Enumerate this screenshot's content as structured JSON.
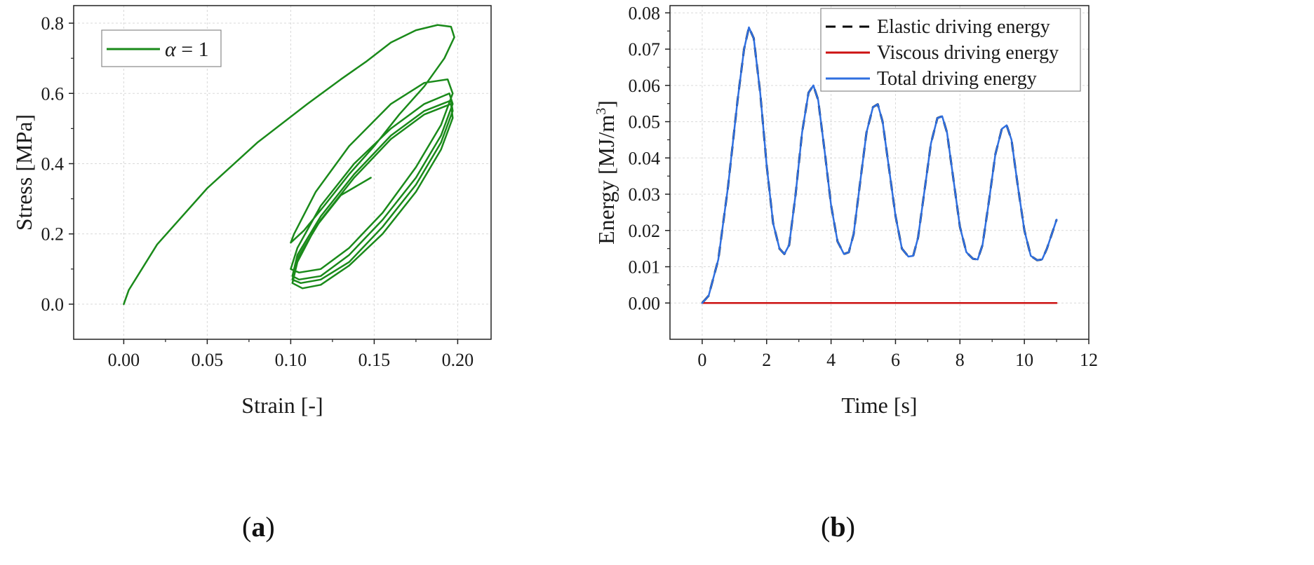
{
  "panels": [
    {
      "label_open": "(",
      "label_letter": "a",
      "label_close": ")"
    },
    {
      "label_open": "(",
      "label_letter": "b",
      "label_close": ")"
    }
  ],
  "chart_data": [
    {
      "type": "line",
      "xlabel": "Strain [-]",
      "ylabel": "Stress [MPa]",
      "xlim": [
        -0.03,
        0.22
      ],
      "ylim": [
        -0.1,
        0.85
      ],
      "xticks": [
        0.0,
        0.05,
        0.1,
        0.15,
        0.2
      ],
      "xtick_labels": [
        "0.00",
        "0.05",
        "0.10",
        "0.15",
        "0.20"
      ],
      "yticks": [
        0.0,
        0.2,
        0.4,
        0.6,
        0.8
      ],
      "ytick_labels": [
        "0.0",
        "0.2",
        "0.4",
        "0.6",
        "0.8"
      ],
      "grid": true,
      "legend_position": "top-left",
      "legend": {
        "symbol": "α",
        "text": " = 1"
      },
      "series": [
        {
          "name": "α = 1",
          "color": "#1a8a1a",
          "x": [
            0.0,
            0.003,
            0.02,
            0.05,
            0.08,
            0.11,
            0.13,
            0.145,
            0.16,
            0.175,
            0.188,
            0.196,
            0.198,
            0.192,
            0.18,
            0.165,
            0.15,
            0.135,
            0.12,
            0.108,
            0.1,
            0.102,
            0.115,
            0.135,
            0.16,
            0.18,
            0.194,
            0.197,
            0.19,
            0.175,
            0.155,
            0.135,
            0.118,
            0.105,
            0.1,
            0.104,
            0.118,
            0.138,
            0.16,
            0.18,
            0.195,
            0.197,
            0.19,
            0.175,
            0.155,
            0.135,
            0.118,
            0.105,
            0.101,
            0.104,
            0.118,
            0.138,
            0.16,
            0.18,
            0.196,
            0.197,
            0.19,
            0.175,
            0.155,
            0.135,
            0.118,
            0.106,
            0.101,
            0.104,
            0.118,
            0.138,
            0.16,
            0.18,
            0.196,
            0.197,
            0.19,
            0.175,
            0.155,
            0.135,
            0.118,
            0.107,
            0.101,
            0.104,
            0.115,
            0.13,
            0.148
          ],
          "y": [
            0.0,
            0.04,
            0.17,
            0.33,
            0.46,
            0.57,
            0.64,
            0.69,
            0.745,
            0.78,
            0.795,
            0.79,
            0.76,
            0.7,
            0.62,
            0.54,
            0.45,
            0.37,
            0.28,
            0.21,
            0.175,
            0.2,
            0.32,
            0.45,
            0.57,
            0.63,
            0.64,
            0.6,
            0.51,
            0.39,
            0.26,
            0.16,
            0.1,
            0.09,
            0.1,
            0.16,
            0.28,
            0.4,
            0.5,
            0.57,
            0.6,
            0.57,
            0.48,
            0.36,
            0.24,
            0.14,
            0.08,
            0.07,
            0.08,
            0.14,
            0.25,
            0.37,
            0.48,
            0.55,
            0.58,
            0.55,
            0.46,
            0.34,
            0.22,
            0.12,
            0.07,
            0.06,
            0.07,
            0.13,
            0.24,
            0.36,
            0.47,
            0.54,
            0.57,
            0.53,
            0.44,
            0.32,
            0.2,
            0.11,
            0.055,
            0.045,
            0.06,
            0.12,
            0.22,
            0.31,
            0.36
          ]
        }
      ]
    },
    {
      "type": "line",
      "xlabel": "Time [s]",
      "ylabel_main": "Energy [MJ/m",
      "ylabel_sup": "3",
      "ylabel_close": "]",
      "xlim": [
        -1,
        12
      ],
      "ylim": [
        -0.01,
        0.082
      ],
      "xticks": [
        0,
        2,
        4,
        6,
        8,
        10,
        12
      ],
      "xtick_labels": [
        "0",
        "2",
        "4",
        "6",
        "8",
        "10",
        "12"
      ],
      "yticks": [
        0.0,
        0.01,
        0.02,
        0.03,
        0.04,
        0.05,
        0.06,
        0.07,
        0.08
      ],
      "ytick_labels": [
        "0.00",
        "0.01",
        "0.02",
        "0.03",
        "0.04",
        "0.05",
        "0.06",
        "0.07",
        "0.08"
      ],
      "grid": true,
      "legend_position": "top-right",
      "series": [
        {
          "name": "Elastic driving energy",
          "color": "#000000",
          "style": "dashed",
          "x": [
            0,
            0.2,
            0.5,
            0.8,
            1.1,
            1.3,
            1.45,
            1.6,
            1.8,
            2.0,
            2.2,
            2.4,
            2.55,
            2.7,
            2.9,
            3.1,
            3.3,
            3.45,
            3.6,
            3.8,
            4.0,
            4.2,
            4.4,
            4.55,
            4.7,
            4.9,
            5.1,
            5.3,
            5.45,
            5.6,
            5.8,
            6.0,
            6.2,
            6.4,
            6.55,
            6.7,
            6.9,
            7.1,
            7.3,
            7.45,
            7.6,
            7.8,
            8.0,
            8.2,
            8.4,
            8.55,
            8.7,
            8.9,
            9.1,
            9.3,
            9.45,
            9.6,
            9.8,
            10.0,
            10.2,
            10.4,
            10.55,
            10.7,
            10.85,
            11.0
          ],
          "y": [
            0.0,
            0.002,
            0.012,
            0.032,
            0.056,
            0.07,
            0.076,
            0.073,
            0.058,
            0.038,
            0.022,
            0.015,
            0.0135,
            0.016,
            0.03,
            0.047,
            0.058,
            0.06,
            0.056,
            0.042,
            0.027,
            0.017,
            0.0135,
            0.014,
            0.019,
            0.033,
            0.047,
            0.054,
            0.0548,
            0.05,
            0.037,
            0.024,
            0.015,
            0.0128,
            0.013,
            0.018,
            0.031,
            0.044,
            0.051,
            0.0515,
            0.047,
            0.034,
            0.021,
            0.014,
            0.0122,
            0.012,
            0.016,
            0.028,
            0.041,
            0.048,
            0.049,
            0.045,
            0.032,
            0.02,
            0.013,
            0.0118,
            0.012,
            0.015,
            0.019,
            0.023
          ]
        },
        {
          "name": "Viscous  driving energy",
          "color": "#cc1111",
          "style": "solid",
          "x": [
            0,
            11.0
          ],
          "y": [
            0.0,
            0.0
          ]
        },
        {
          "name": "Total  driving energy",
          "color": "#2f6fe0",
          "style": "solid",
          "x": [
            0,
            0.2,
            0.5,
            0.8,
            1.1,
            1.3,
            1.45,
            1.6,
            1.8,
            2.0,
            2.2,
            2.4,
            2.55,
            2.7,
            2.9,
            3.1,
            3.3,
            3.45,
            3.6,
            3.8,
            4.0,
            4.2,
            4.4,
            4.55,
            4.7,
            4.9,
            5.1,
            5.3,
            5.45,
            5.6,
            5.8,
            6.0,
            6.2,
            6.4,
            6.55,
            6.7,
            6.9,
            7.1,
            7.3,
            7.45,
            7.6,
            7.8,
            8.0,
            8.2,
            8.4,
            8.55,
            8.7,
            8.9,
            9.1,
            9.3,
            9.45,
            9.6,
            9.8,
            10.0,
            10.2,
            10.4,
            10.55,
            10.7,
            10.85,
            11.0
          ],
          "y": [
            0.0,
            0.002,
            0.012,
            0.032,
            0.056,
            0.07,
            0.076,
            0.073,
            0.058,
            0.038,
            0.022,
            0.015,
            0.0135,
            0.016,
            0.03,
            0.047,
            0.058,
            0.06,
            0.056,
            0.042,
            0.027,
            0.017,
            0.0135,
            0.014,
            0.019,
            0.033,
            0.047,
            0.054,
            0.0548,
            0.05,
            0.037,
            0.024,
            0.015,
            0.0128,
            0.013,
            0.018,
            0.031,
            0.044,
            0.051,
            0.0515,
            0.047,
            0.034,
            0.021,
            0.014,
            0.0122,
            0.012,
            0.016,
            0.028,
            0.041,
            0.048,
            0.049,
            0.045,
            0.032,
            0.02,
            0.013,
            0.0118,
            0.012,
            0.015,
            0.019,
            0.023
          ]
        }
      ]
    }
  ]
}
